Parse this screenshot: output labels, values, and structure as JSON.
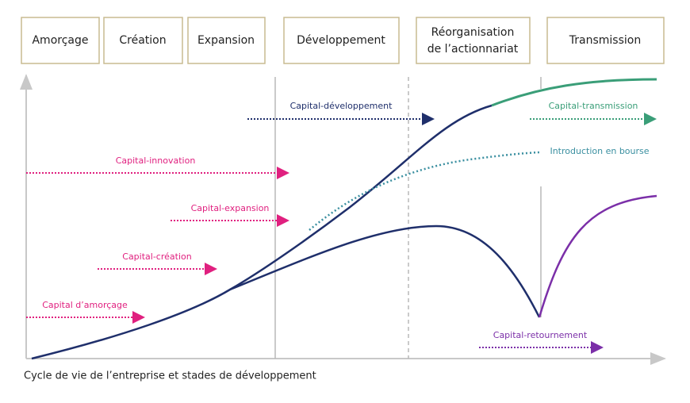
{
  "stages": [
    {
      "label": "Amorçage"
    },
    {
      "label": "Création"
    },
    {
      "label": "Expansion"
    },
    {
      "label": "Développement"
    },
    {
      "lines": [
        "Réorganisation",
        "de l’actionnariat"
      ]
    },
    {
      "label": "Transmission"
    }
  ],
  "labels": {
    "developpement": "Capital-développement",
    "transmission": "Capital-transmission",
    "bourse": "Introduction en bourse",
    "innovation": "Capital-innovation",
    "expansion": "Capital-expansion",
    "creation": "Capital-création",
    "amorcage": "Capital d’amorçage",
    "retournement": "Capital-retournement"
  },
  "caption": "Cycle de vie de l’entreprise et stades de développement"
}
